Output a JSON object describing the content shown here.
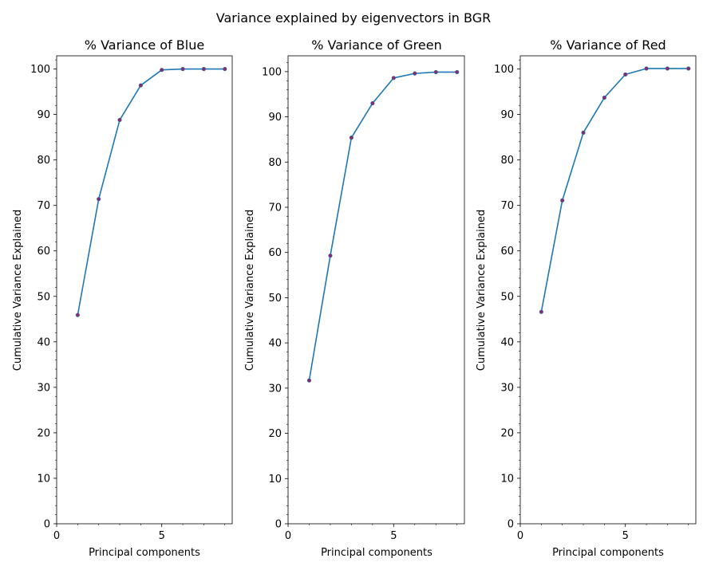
{
  "figure": {
    "suptitle": "Variance explained by eigenvectors in BGR"
  },
  "style": {
    "line_color": "#1f77b4",
    "marker_color": "#8b2a6b",
    "axis_color": "#000000",
    "background": "#ffffff"
  },
  "chart_data": [
    {
      "type": "line",
      "title": "% Variance of Blue",
      "xlabel": "Principal components",
      "ylabel": "Cumulative Variance Explained",
      "x": [
        1,
        2,
        3,
        4,
        5,
        6,
        7,
        8
      ],
      "values": [
        45.9,
        71.4,
        88.8,
        96.4,
        99.8,
        100.0,
        100.0,
        100.0
      ],
      "xlim": [
        0,
        8.35
      ],
      "ylim": [
        0,
        102.9
      ],
      "xticks": [
        0,
        5
      ],
      "yticks": [
        0,
        10,
        20,
        30,
        40,
        50,
        60,
        70,
        80,
        90,
        100
      ],
      "marker": "o",
      "grid": false
    },
    {
      "type": "line",
      "title": "% Variance of Green",
      "xlabel": "Principal components",
      "ylabel": "Cumulative Variance Explained",
      "x": [
        1,
        2,
        3,
        4,
        5,
        6,
        7,
        8
      ],
      "values": [
        31.7,
        59.3,
        85.4,
        93.0,
        98.6,
        99.6,
        99.9,
        99.9
      ],
      "xlim": [
        0,
        8.35
      ],
      "ylim": [
        0,
        103.5
      ],
      "xticks": [
        0,
        5
      ],
      "yticks": [
        0,
        10,
        20,
        30,
        40,
        50,
        60,
        70,
        80,
        90,
        100
      ],
      "marker": "o",
      "grid": false
    },
    {
      "type": "line",
      "title": "% Variance of Red",
      "xlabel": "Principal components",
      "ylabel": "Cumulative Variance Explained",
      "x": [
        1,
        2,
        3,
        4,
        5,
        6,
        7,
        8
      ],
      "values": [
        46.6,
        71.1,
        86.0,
        93.7,
        98.8,
        100.1,
        100.1,
        100.1
      ],
      "xlim": [
        0,
        8.35
      ],
      "ylim": [
        0,
        102.9
      ],
      "xticks": [
        0,
        5
      ],
      "yticks": [
        0,
        10,
        20,
        30,
        40,
        50,
        60,
        70,
        80,
        90,
        100
      ],
      "marker": "o",
      "grid": false
    }
  ]
}
